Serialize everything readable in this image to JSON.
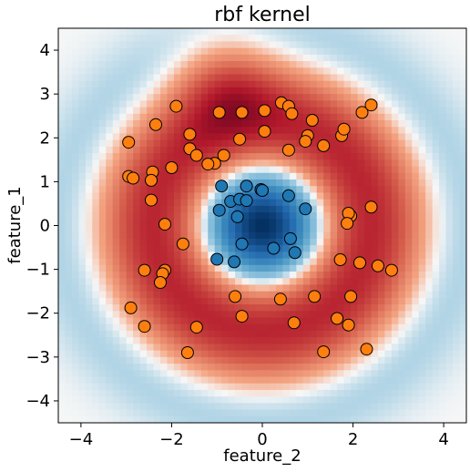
{
  "chart_data": {
    "type": "scatter",
    "title": "rbf kernel",
    "xlabel": "feature_2",
    "ylabel": "feature_1",
    "xlim": [
      -4.5,
      4.5
    ],
    "ylim": [
      -4.5,
      4.5
    ],
    "xticks": [
      -4,
      -2,
      0,
      2,
      4
    ],
    "yticks": [
      -4,
      -3,
      -2,
      -1,
      0,
      1,
      2,
      3,
      4
    ],
    "grid": false,
    "background": "decision-function heatmap (RdBu colormap): blue center, red periphery",
    "colors": {
      "class_0": "#1f77b4",
      "class_1": "#ff7f0e",
      "heatmap_low": "#67001f",
      "heatmap_mid": "#f7f7f7",
      "heatmap_high": "#053061"
    },
    "series": [
      {
        "class": 0,
        "points": [
          [
            -0.9,
            0.9
          ],
          [
            -0.7,
            0.55
          ],
          [
            -0.5,
            0.6
          ],
          [
            -0.35,
            0.57
          ],
          [
            -0.35,
            0.9
          ],
          [
            -0.95,
            0.35
          ],
          [
            -0.55,
            0.2
          ],
          [
            -0.03,
            0.82
          ],
          [
            0.0,
            0.8
          ],
          [
            0.58,
            0.68
          ],
          [
            0.95,
            0.38
          ],
          [
            -0.45,
            -0.42
          ],
          [
            0.62,
            -0.3
          ],
          [
            0.25,
            -0.52
          ],
          [
            0.72,
            -0.62
          ],
          [
            -1.0,
            -0.77
          ],
          [
            -0.62,
            -0.83
          ]
        ]
      },
      {
        "class": 1,
        "points": [
          [
            -1.9,
            2.72
          ],
          [
            -2.35,
            2.3
          ],
          [
            -2.95,
            1.9
          ],
          [
            -1.6,
            2.08
          ],
          [
            -1.6,
            1.75
          ],
          [
            -1.45,
            1.6
          ],
          [
            -0.95,
            2.58
          ],
          [
            -0.45,
            2.58
          ],
          [
            0.05,
            2.62
          ],
          [
            0.42,
            2.8
          ],
          [
            0.58,
            2.72
          ],
          [
            0.65,
            2.55
          ],
          [
            1.0,
            2.05
          ],
          [
            1.1,
            2.4
          ],
          [
            0.95,
            1.92
          ],
          [
            1.35,
            1.82
          ],
          [
            0.58,
            1.72
          ],
          [
            0.05,
            2.15
          ],
          [
            -0.5,
            1.97
          ],
          [
            -1.05,
            1.42
          ],
          [
            -1.2,
            1.4
          ],
          [
            -0.85,
            1.6
          ],
          [
            -2.0,
            1.32
          ],
          [
            -2.42,
            1.22
          ],
          [
            -2.45,
            1.03
          ],
          [
            -2.95,
            1.12
          ],
          [
            -2.85,
            1.08
          ],
          [
            -2.45,
            0.58
          ],
          [
            -2.15,
            0.03
          ],
          [
            1.75,
            2.05
          ],
          [
            1.8,
            2.2
          ],
          [
            2.2,
            2.58
          ],
          [
            2.4,
            2.75
          ],
          [
            1.95,
            0.22
          ],
          [
            1.9,
            0.28
          ],
          [
            1.87,
            0.05
          ],
          [
            2.4,
            0.42
          ],
          [
            1.72,
            -0.78
          ],
          [
            2.15,
            -0.85
          ],
          [
            2.55,
            -0.92
          ],
          [
            2.85,
            -1.02
          ],
          [
            -1.75,
            -0.42
          ],
          [
            -2.15,
            -1.02
          ],
          [
            -2.2,
            -1.1
          ],
          [
            -2.25,
            -1.3
          ],
          [
            -2.6,
            -1.02
          ],
          [
            -2.9,
            -1.88
          ],
          [
            -2.6,
            -2.3
          ],
          [
            -1.45,
            -2.32
          ],
          [
            -1.65,
            -2.9
          ],
          [
            -0.6,
            -1.62
          ],
          [
            -0.45,
            -2.07
          ],
          [
            0.4,
            -1.68
          ],
          [
            0.7,
            -2.22
          ],
          [
            1.15,
            -1.62
          ],
          [
            1.95,
            -1.62
          ],
          [
            1.65,
            -2.12
          ],
          [
            1.9,
            -2.27
          ],
          [
            1.35,
            -2.88
          ],
          [
            2.3,
            -2.82
          ]
        ]
      }
    ]
  }
}
